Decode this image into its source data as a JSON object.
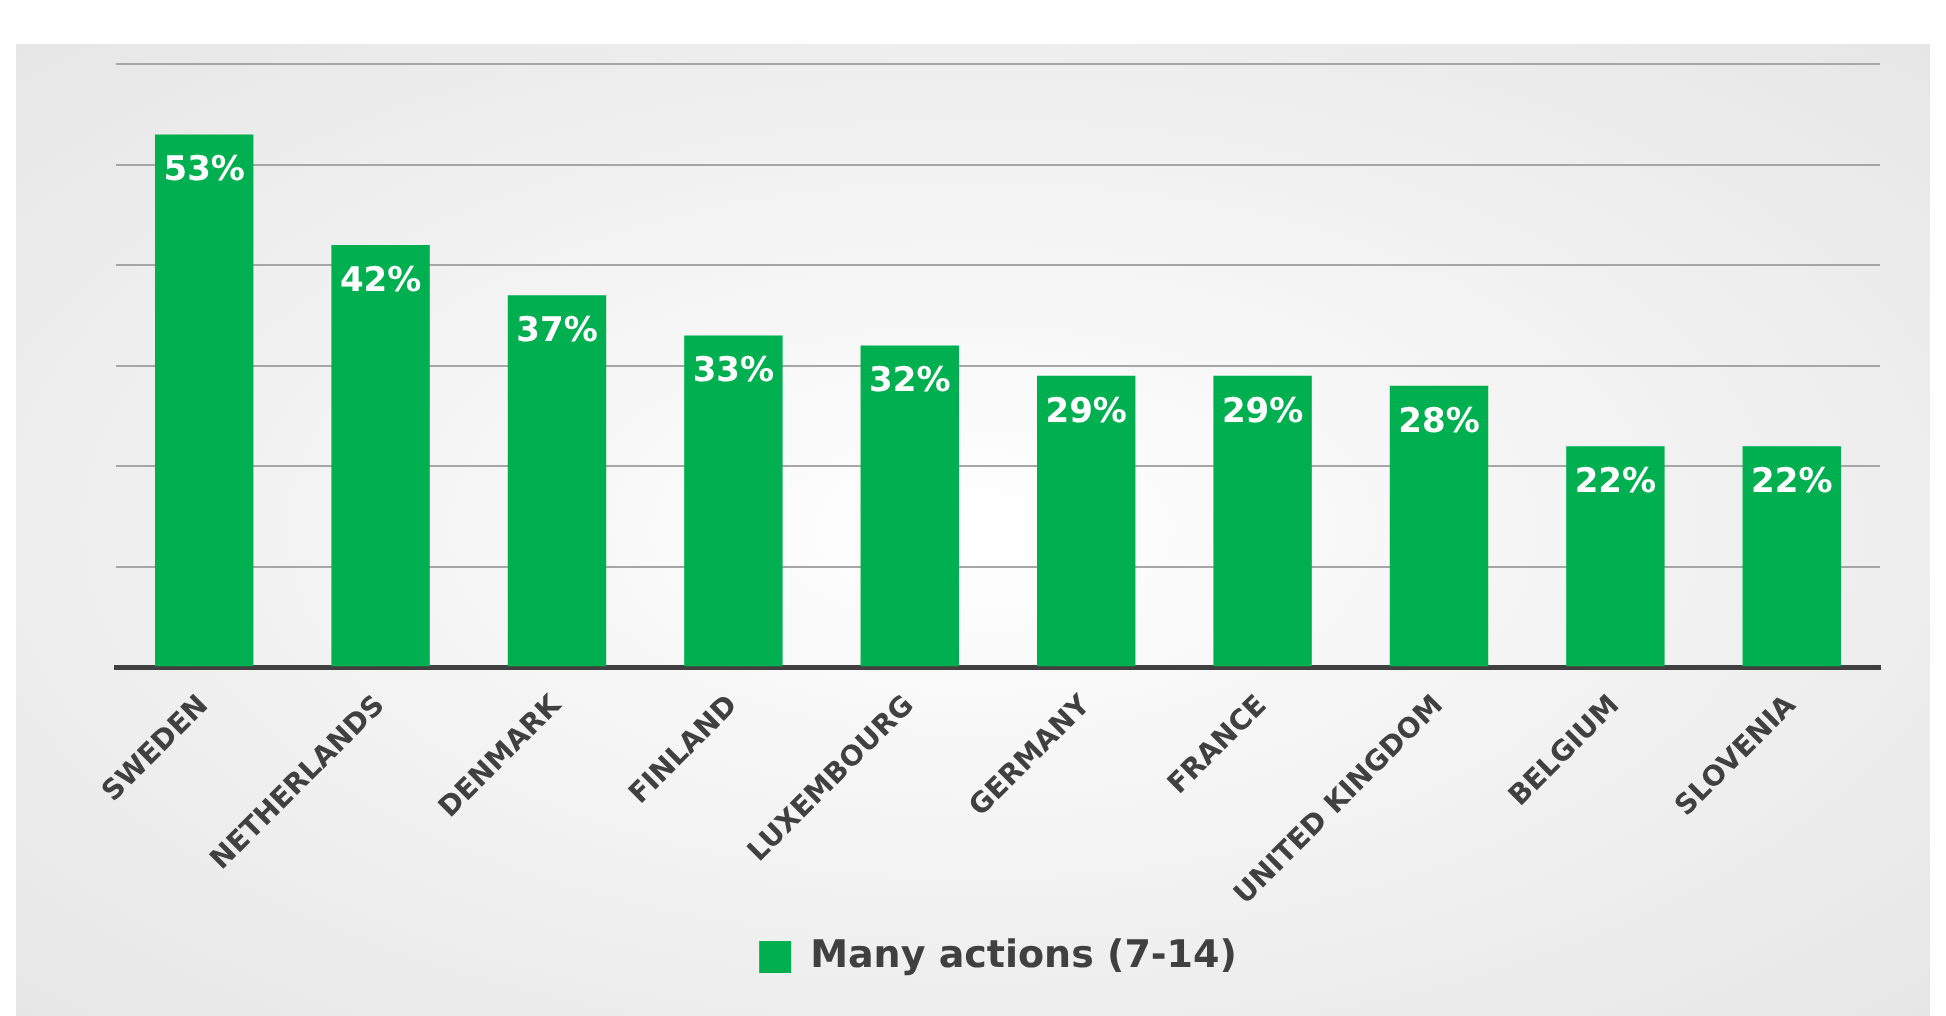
{
  "chart_data": {
    "type": "bar",
    "categories": [
      "SWEDEN",
      "NETHERLANDS",
      "DENMARK",
      "FINLAND",
      "LUXEMBOURG",
      "GERMANY",
      "FRANCE",
      "UNITED KINGDOM",
      "BELGIUM",
      "SLOVENIA"
    ],
    "series": [
      {
        "name": "Many actions (7-14)",
        "color": "#00b050",
        "values": [
          53,
          42,
          37,
          33,
          32,
          29,
          29,
          28,
          22,
          22
        ],
        "value_labels": [
          "53%",
          "42%",
          "37%",
          "33%",
          "32%",
          "29%",
          "29%",
          "28%",
          "22%",
          "22%"
        ]
      }
    ],
    "tick_labels": "x",
    "grid": "y",
    "legend": "bottom"
  }
}
